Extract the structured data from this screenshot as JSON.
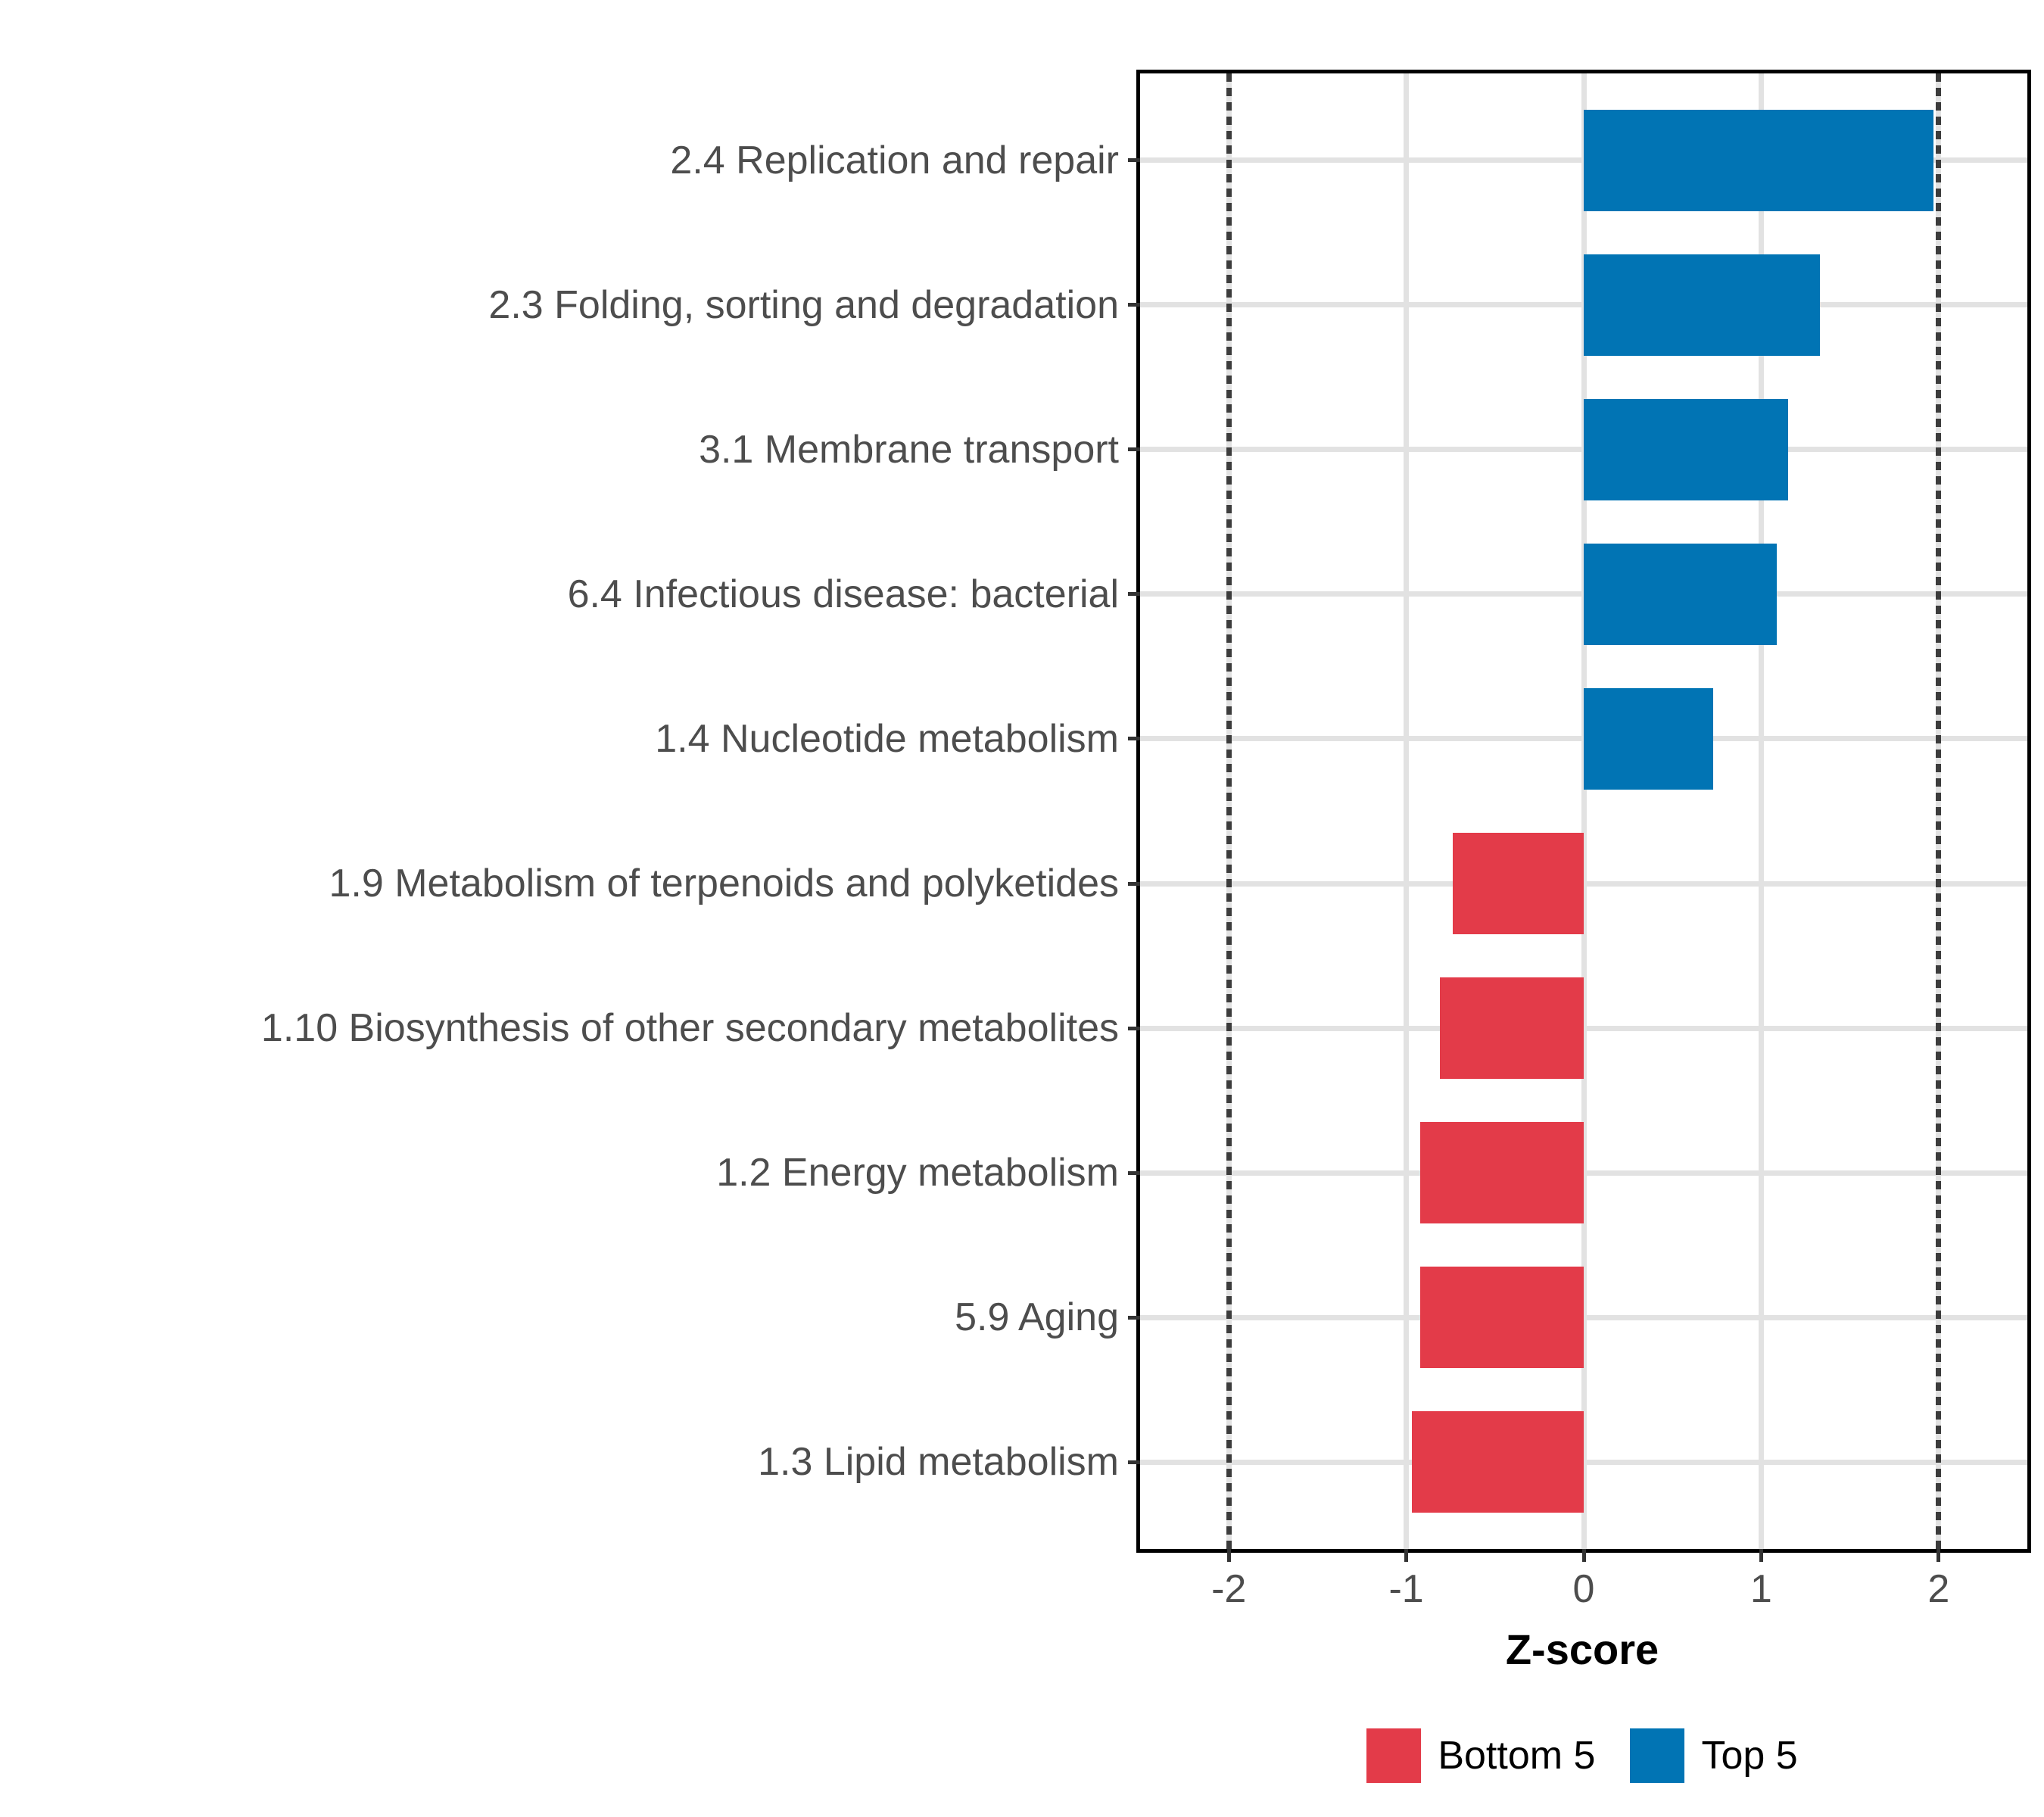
{
  "chart_data": {
    "type": "bar",
    "orientation": "horizontal",
    "title": "",
    "xlabel": "Z-score",
    "ylabel": "",
    "categories": [
      "2.4 Replication and repair",
      "2.3 Folding, sorting and degradation",
      "3.1 Membrane transport",
      "6.4 Infectious disease: bacterial",
      "1.4 Nucleotide metabolism",
      "1.9 Metabolism of terpenoids and polyketides",
      "1.10 Biosynthesis of other secondary metabolites",
      "1.2 Energy metabolism",
      "5.9 Aging",
      "1.3 Lipid metabolism"
    ],
    "values": [
      1.97,
      1.33,
      1.15,
      1.09,
      0.73,
      -0.74,
      -0.81,
      -0.92,
      -0.92,
      -0.97
    ],
    "groups": [
      "Top 5",
      "Top 5",
      "Top 5",
      "Top 5",
      "Top 5",
      "Bottom 5",
      "Bottom 5",
      "Bottom 5",
      "Bottom 5",
      "Bottom 5"
    ],
    "x_ticks": [
      "-2",
      "-1",
      "0",
      "1",
      "2"
    ],
    "x_tick_values": [
      -2,
      -1,
      0,
      1,
      2
    ],
    "xlim": [
      -2.5,
      2.5
    ],
    "reference_lines": [
      -2,
      2
    ],
    "grid": true,
    "legend_position": "bottom",
    "legend": [
      {
        "label": "Bottom 5",
        "color": "#e33b49"
      },
      {
        "label": "Top 5",
        "color": "#0174b4"
      }
    ],
    "colors": {
      "top5": "#0174b4",
      "bottom5": "#e33b49",
      "gridline": "#e2e2e2",
      "reference_line": "#3c3c3c",
      "axis_text": "#4d4d4d",
      "axis_title": "#000000",
      "panel_border": "#000000"
    }
  }
}
